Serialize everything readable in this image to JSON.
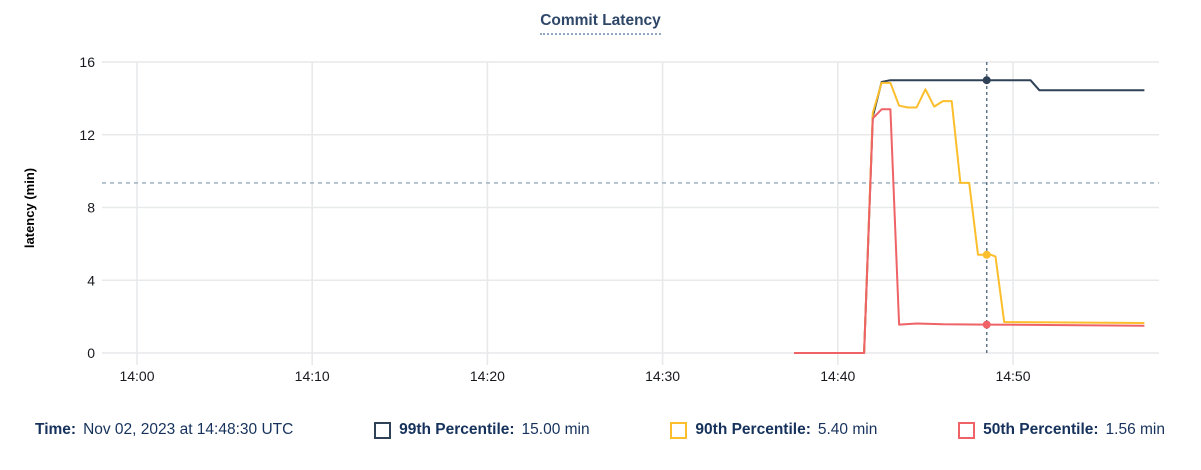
{
  "title": "Commit Latency",
  "colors": {
    "p99": "#2e4157",
    "p90": "#fcbe2c",
    "p50": "#ef6266",
    "cursor_line": "#5f7689",
    "annotation_line": "#a4b8c4",
    "grid": "#e8e9eb",
    "axis_text": "#17191f",
    "legend_text": "#16325c",
    "title_text": "#2e4668"
  },
  "chart_data": {
    "type": "line",
    "title": "Commit Latency",
    "xlabel": "",
    "ylabel": "latency (min)",
    "ylim": [
      0,
      16
    ],
    "yticks": [
      0,
      4,
      8,
      12,
      16
    ],
    "xticks": [
      "14:00",
      "14:10",
      "14:20",
      "14:30",
      "14:40",
      "14:50"
    ],
    "x_domain": [
      "13:58:00",
      "14:58:20"
    ],
    "grid": "on",
    "legend_position": "bottom",
    "annotation_y": 9.35,
    "cursor_time": "14:48:30",
    "series": [
      {
        "name": "99th Percentile",
        "color": "#2e4157",
        "cursor_value": 15.0,
        "points": [
          [
            "14:37:30",
            0
          ],
          [
            "14:41:30",
            0
          ],
          [
            "14:42:00",
            13.0
          ],
          [
            "14:42:30",
            14.9
          ],
          [
            "14:43:00",
            15.0
          ],
          [
            "14:51:00",
            15.0
          ],
          [
            "14:51:30",
            14.45
          ],
          [
            "14:57:30",
            14.45
          ]
        ]
      },
      {
        "name": "90th Percentile",
        "color": "#fcbe2c",
        "cursor_value": 5.4,
        "points": [
          [
            "14:37:30",
            0
          ],
          [
            "14:41:30",
            0
          ],
          [
            "14:42:00",
            13.2
          ],
          [
            "14:42:30",
            14.85
          ],
          [
            "14:43:00",
            14.85
          ],
          [
            "14:43:30",
            13.6
          ],
          [
            "14:44:00",
            13.5
          ],
          [
            "14:44:30",
            13.5
          ],
          [
            "14:45:00",
            14.5
          ],
          [
            "14:45:30",
            13.55
          ],
          [
            "14:46:00",
            13.85
          ],
          [
            "14:46:30",
            13.85
          ],
          [
            "14:47:00",
            9.35
          ],
          [
            "14:47:30",
            9.35
          ],
          [
            "14:48:00",
            5.4
          ],
          [
            "14:48:45",
            5.4
          ],
          [
            "14:49:00",
            5.3
          ],
          [
            "14:49:30",
            1.7
          ],
          [
            "14:57:30",
            1.65
          ]
        ]
      },
      {
        "name": "50th Percentile",
        "color": "#ef6266",
        "cursor_value": 1.56,
        "points": [
          [
            "14:37:30",
            0
          ],
          [
            "14:41:30",
            0
          ],
          [
            "14:42:00",
            12.9
          ],
          [
            "14:42:30",
            13.4
          ],
          [
            "14:43:00",
            13.4
          ],
          [
            "14:43:30",
            1.56
          ],
          [
            "14:44:30",
            1.62
          ],
          [
            "14:46:00",
            1.58
          ],
          [
            "14:48:30",
            1.56
          ],
          [
            "14:57:30",
            1.5
          ]
        ]
      }
    ]
  },
  "legend": {
    "time_label": "Time:",
    "time_value": "Nov 02, 2023 at 14:48:30 UTC",
    "items": [
      {
        "label": "99th Percentile:",
        "value": "15.00 min",
        "color": "#2e4157"
      },
      {
        "label": "90th Percentile:",
        "value": "5.40 min",
        "color": "#fcbe2c"
      },
      {
        "label": "50th Percentile:",
        "value": "1.56 min",
        "color": "#ef6266"
      }
    ]
  }
}
